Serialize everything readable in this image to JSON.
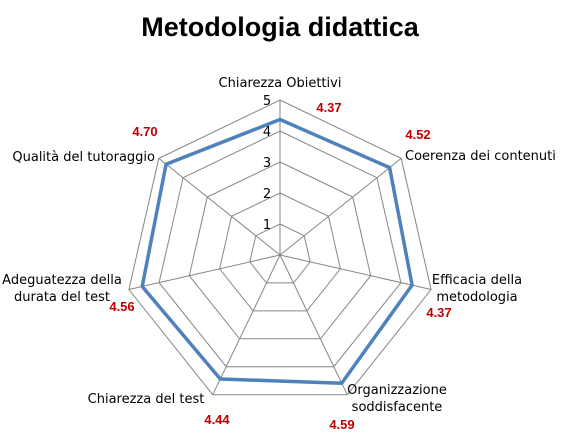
{
  "chart_data": {
    "type": "radar",
    "title": "Metodologia didattica",
    "categories": [
      [
        "Chiarezza Obiettivi"
      ],
      [
        "Coerenza dei contenuti"
      ],
      [
        "Efficacia della",
        "metodologia"
      ],
      [
        "Organizzazione",
        "soddisfacente"
      ],
      [
        "Chiarezza del test"
      ],
      [
        "Adeguatezza della",
        "durata del test"
      ],
      [
        "Qualità del tutoraggio"
      ]
    ],
    "values": [
      4.37,
      4.52,
      4.37,
      4.59,
      4.44,
      4.56,
      4.7
    ],
    "value_labels": [
      "4.37",
      "4.52",
      "4.37",
      "4.59",
      "4.44",
      "4.56",
      "4.70"
    ],
    "r_ticks": [
      1,
      2,
      3,
      4,
      5
    ],
    "r_range": [
      0,
      5
    ],
    "grid": true,
    "legend": "none",
    "colors": {
      "series": "#4f81bd",
      "grid": "#868686",
      "value_label": "#c00000"
    }
  }
}
